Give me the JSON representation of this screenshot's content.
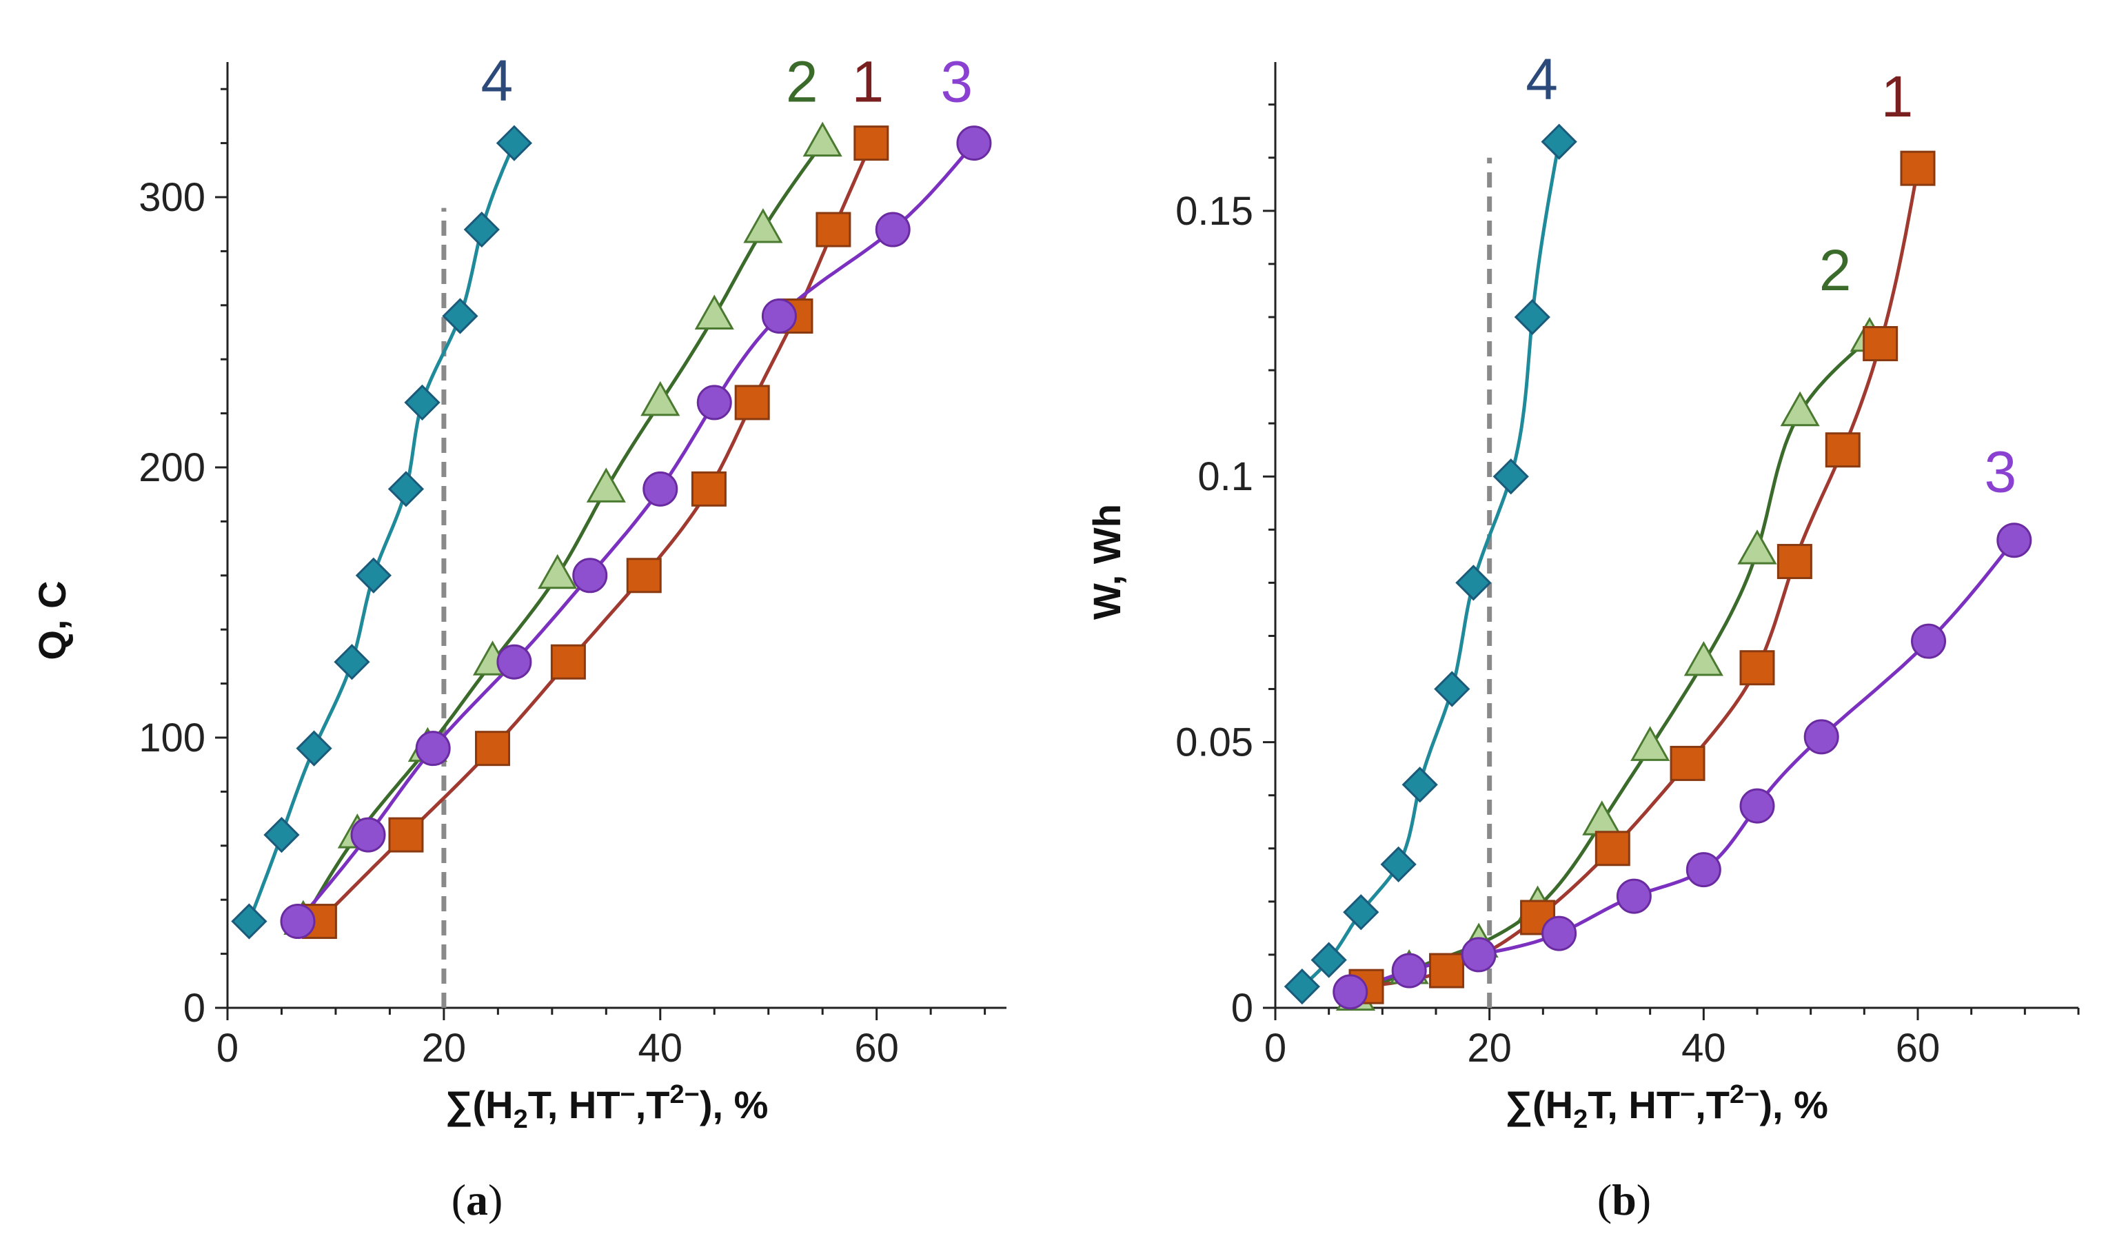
{
  "colors": {
    "series_1_line": "#a0392f",
    "series_1_marker": "#d05a10",
    "series_1_label": "#7a1f1f",
    "series_2_line": "#3b6b2a",
    "series_2_marker": "#b5d49a",
    "series_2_label": "#3b6b2a",
    "series_3_line": "#7b30c0",
    "series_3_marker": "#8f50d0",
    "series_3_label": "#8a40d0",
    "series_4_line": "#1f8a9a",
    "series_4_marker": "#1e8aa0",
    "series_4_label": "#2b4a7a",
    "reference_line": "#8a8a8a",
    "axis": "#222222"
  },
  "chart_data": [
    {
      "type": "line",
      "panel_label": "(a)",
      "xlabel": "∑(H",
      "xlabel_sub": "2",
      "xlabel_rest": "T, HT",
      "xlabel_sup1": "−",
      "xlabel_rest2": ",T",
      "xlabel_sup2": "2−",
      "xlabel_end": "), %",
      "ylabel": "Q, C",
      "xlim": [
        0,
        72
      ],
      "ylim": [
        0,
        350
      ],
      "xticks": [
        0,
        20,
        40,
        60
      ],
      "yticks": [
        0,
        100,
        200,
        300
      ],
      "x_minor_step": 5,
      "y_minor_step": 20,
      "reference_x": 20,
      "reference_ymax": 296,
      "series": [
        {
          "name": "4",
          "marker": "diamond",
          "x": [
            2,
            5,
            8,
            11.5,
            13.5,
            16.5,
            18,
            21.5,
            23.5,
            26.5
          ],
          "y": [
            32,
            64,
            96,
            128,
            160,
            192,
            224,
            256,
            288,
            320
          ]
        },
        {
          "name": "2",
          "marker": "triangle",
          "x": [
            7,
            12,
            18.5,
            24.5,
            30.5,
            35,
            40,
            45,
            49.5,
            55
          ],
          "y": [
            32,
            64,
            96,
            128,
            160,
            192,
            224,
            256,
            288,
            320
          ]
        },
        {
          "name": "1",
          "marker": "square",
          "x": [
            8.5,
            16.5,
            24.5,
            31.5,
            38.5,
            44.5,
            48.5,
            52.5,
            56,
            59.5
          ],
          "y": [
            32,
            64,
            96,
            128,
            160,
            192,
            224,
            256,
            288,
            320
          ]
        },
        {
          "name": "3",
          "marker": "circle",
          "x": [
            6.5,
            13,
            19,
            26.5,
            33.5,
            40,
            45,
            51,
            61.5,
            69
          ],
          "y": [
            32,
            64,
            96,
            128,
            160,
            192,
            224,
            256,
            288,
            320
          ]
        }
      ]
    },
    {
      "type": "line",
      "panel_label": "(b)",
      "xlabel": "∑(H",
      "xlabel_sub": "2",
      "xlabel_rest": "T, HT",
      "xlabel_sup1": "−",
      "xlabel_rest2": ",T",
      "xlabel_sup2": "2−",
      "xlabel_end": "), %",
      "ylabel": "W, Wh",
      "xlim": [
        0,
        75
      ],
      "ylim": [
        0,
        0.178
      ],
      "xticks": [
        0,
        20,
        40,
        60
      ],
      "yticks": [
        0,
        0.05,
        0.1,
        0.15
      ],
      "ytick_labels": [
        "0",
        "0.05",
        "0.1",
        "0.15"
      ],
      "x_minor_step": 5,
      "y_minor_step": 0.01,
      "reference_x": 20,
      "reference_ymax": 0.16,
      "series": [
        {
          "name": "4",
          "marker": "diamond",
          "x": [
            2.5,
            5,
            8,
            11.5,
            13.5,
            16.5,
            18.5,
            22,
            24,
            26.5
          ],
          "y": [
            0.004,
            0.009,
            0.018,
            0.027,
            0.042,
            0.06,
            0.08,
            0.1,
            0.13,
            0.163
          ]
        },
        {
          "name": "2",
          "marker": "triangle",
          "x": [
            7.5,
            12.5,
            19,
            24.5,
            30.5,
            35,
            40,
            45,
            49,
            55.5
          ],
          "y": [
            0.002,
            0.007,
            0.012,
            0.019,
            0.035,
            0.049,
            0.065,
            0.086,
            0.112,
            0.126
          ]
        },
        {
          "name": "1",
          "marker": "square",
          "x": [
            8.5,
            16,
            24.5,
            31.5,
            38.5,
            45,
            48.5,
            53,
            56.5,
            60
          ],
          "y": [
            0.004,
            0.007,
            0.017,
            0.03,
            0.046,
            0.064,
            0.084,
            0.105,
            0.125,
            0.158
          ]
        },
        {
          "name": "3",
          "marker": "circle",
          "x": [
            7,
            12.5,
            19,
            26.5,
            33.5,
            40,
            45,
            51,
            61,
            69
          ],
          "y": [
            0.003,
            0.007,
            0.01,
            0.014,
            0.021,
            0.026,
            0.038,
            0.051,
            0.069,
            0.088
          ]
        }
      ]
    }
  ]
}
